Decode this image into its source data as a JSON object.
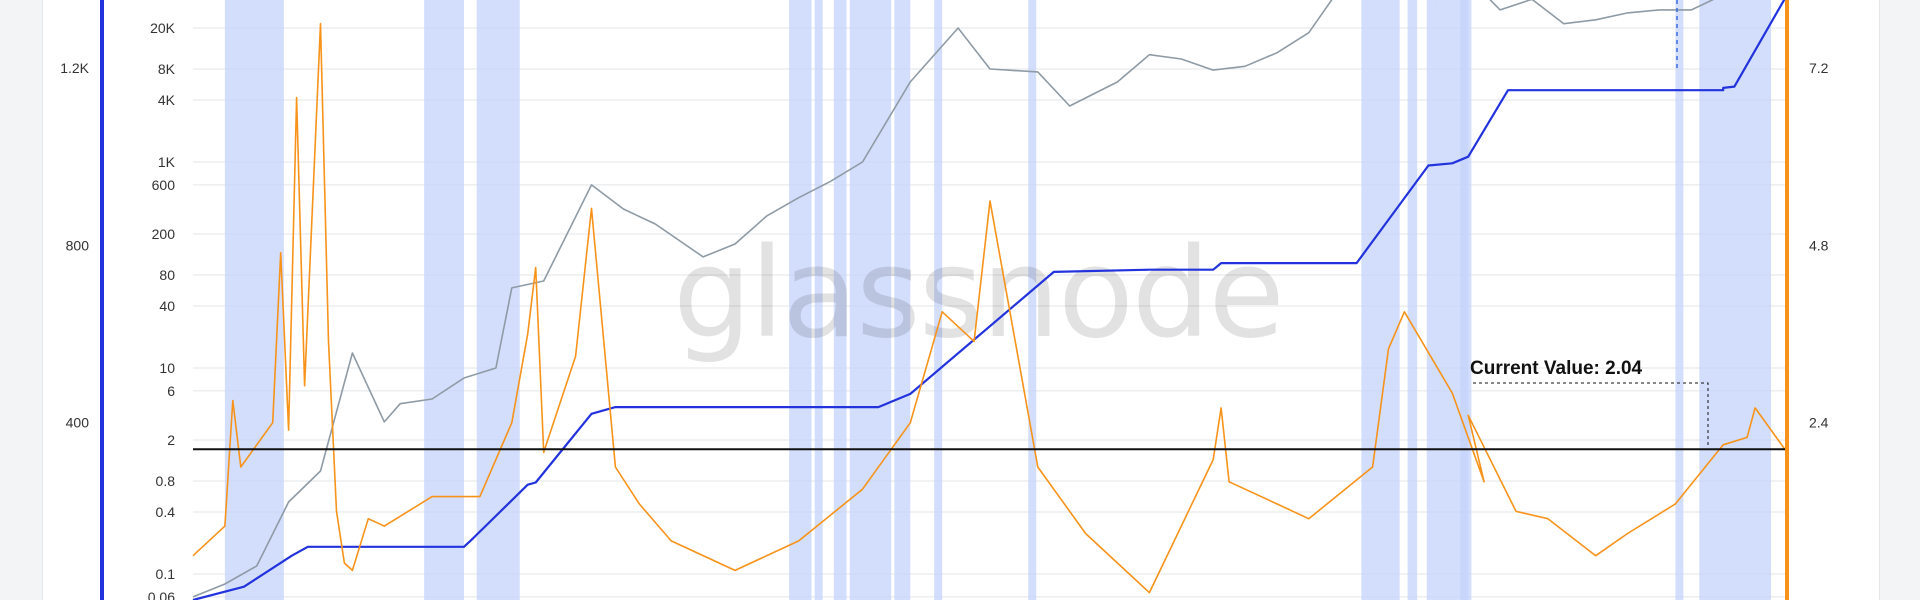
{
  "chart_data": {
    "type": "line",
    "watermark": "glassnode",
    "annotation": {
      "label": "Current Value: 2.04",
      "value": 2.04
    },
    "reference_line": {
      "orange_value": 2.04
    },
    "axes": {
      "price_log": {
        "position": "inner-left",
        "scale": "log",
        "ticks": [
          "20K",
          "8K",
          "4K",
          "1K",
          "600",
          "200",
          "80",
          "40",
          "10",
          "6",
          "2",
          "0.8",
          "0.4",
          "0.1",
          "0.06"
        ],
        "tick_values": [
          20000,
          8000,
          4000,
          1000,
          600,
          200,
          80,
          40,
          10,
          6,
          2,
          0.8,
          0.4,
          0.1,
          0.06
        ]
      },
      "blue_left": {
        "position": "outer-left",
        "color": "#2233dd",
        "ticks": [
          "1.2K",
          "800",
          "400"
        ],
        "tick_values": [
          1200,
          800,
          400
        ],
        "ylim": [
          0,
          1360
        ]
      },
      "orange_right": {
        "position": "right",
        "color": "#f7931a",
        "ticks": [
          "7.2",
          "4.8",
          "2.4"
        ],
        "tick_values": [
          7.2,
          4.8,
          2.4
        ],
        "ylim": [
          0,
          8.2
        ]
      }
    },
    "series": [
      {
        "key": "price",
        "axis": "price_log",
        "color": "#8e9ba5",
        "x": [
          0,
          0.02,
          0.04,
          0.06,
          0.08,
          0.1,
          0.12,
          0.13,
          0.15,
          0.17,
          0.19,
          0.2,
          0.22,
          0.25,
          0.27,
          0.29,
          0.32,
          0.34,
          0.36,
          0.38,
          0.4,
          0.42,
          0.45,
          0.48,
          0.5,
          0.53,
          0.55,
          0.58,
          0.6,
          0.62,
          0.64,
          0.66,
          0.68,
          0.7,
          0.72,
          0.74,
          0.76,
          0.78,
          0.8,
          0.82,
          0.84,
          0.86,
          0.88,
          0.9,
          0.92,
          0.94,
          0.96,
          0.98,
          1.0
        ],
        "y": [
          0.06,
          0.08,
          0.12,
          0.5,
          1.0,
          14,
          3,
          4.5,
          5,
          8,
          10,
          60,
          70,
          600,
          350,
          250,
          120,
          160,
          300,
          450,
          650,
          1000,
          6000,
          20000,
          8000,
          7500,
          3500,
          6000,
          11000,
          10000,
          7800,
          8500,
          11500,
          18000,
          50000,
          60000,
          40000,
          38000,
          62000,
          30000,
          38000,
          22000,
          24000,
          28000,
          30000,
          30000,
          42000,
          68000,
          68000
        ]
      },
      {
        "key": "blue",
        "axis": "blue_left",
        "color": "#2233dd",
        "x": [
          0,
          0.032,
          0.062,
          0.072,
          0.17,
          0.176,
          0.21,
          0.215,
          0.25,
          0.265,
          0.43,
          0.45,
          0.54,
          0.6,
          0.64,
          0.645,
          0.73,
          0.775,
          0.79,
          0.8,
          0.825,
          0.96,
          0.96,
          0.967,
          1.0
        ],
        "y": [
          0,
          30,
          100,
          120,
          120,
          140,
          260,
          265,
          420,
          435,
          435,
          465,
          740,
          745,
          745,
          760,
          760,
          980,
          985,
          1000,
          1150,
          1150,
          1155,
          1158,
          1365
        ]
      },
      {
        "key": "orange",
        "axis": "orange_right",
        "color": "#f7931a",
        "x": [
          0,
          0.02,
          0.025,
          0.03,
          0.05,
          0.055,
          0.06,
          0.065,
          0.07,
          0.08,
          0.085,
          0.09,
          0.095,
          0.1,
          0.11,
          0.12,
          0.15,
          0.18,
          0.2,
          0.21,
          0.215,
          0.22,
          0.24,
          0.25,
          0.265,
          0.28,
          0.3,
          0.34,
          0.38,
          0.42,
          0.45,
          0.47,
          0.49,
          0.5,
          0.53,
          0.56,
          0.6,
          0.64,
          0.645,
          0.65,
          0.68,
          0.7,
          0.74,
          0.75,
          0.76,
          0.79,
          0.81,
          0.8,
          0.83,
          0.85,
          0.88,
          0.9,
          0.93,
          0.96,
          0.975,
          0.98,
          1.0
        ],
        "y": [
          0.6,
          1.0,
          2.7,
          1.8,
          2.4,
          4.7,
          2.3,
          6.8,
          2.9,
          7.8,
          3.5,
          1.2,
          0.5,
          0.4,
          1.1,
          1.0,
          1.4,
          1.4,
          2.4,
          3.6,
          4.5,
          2.0,
          3.3,
          5.3,
          1.8,
          1.3,
          0.8,
          0.4,
          0.8,
          1.5,
          2.4,
          3.9,
          3.5,
          5.4,
          1.8,
          0.9,
          0.1,
          1.9,
          2.6,
          1.6,
          1.3,
          1.1,
          1.8,
          3.4,
          3.9,
          2.8,
          1.6,
          2.5,
          1.2,
          1.1,
          0.6,
          0.9,
          1.3,
          2.1,
          2.2,
          2.6,
          2.0
        ]
      }
    ]
  }
}
